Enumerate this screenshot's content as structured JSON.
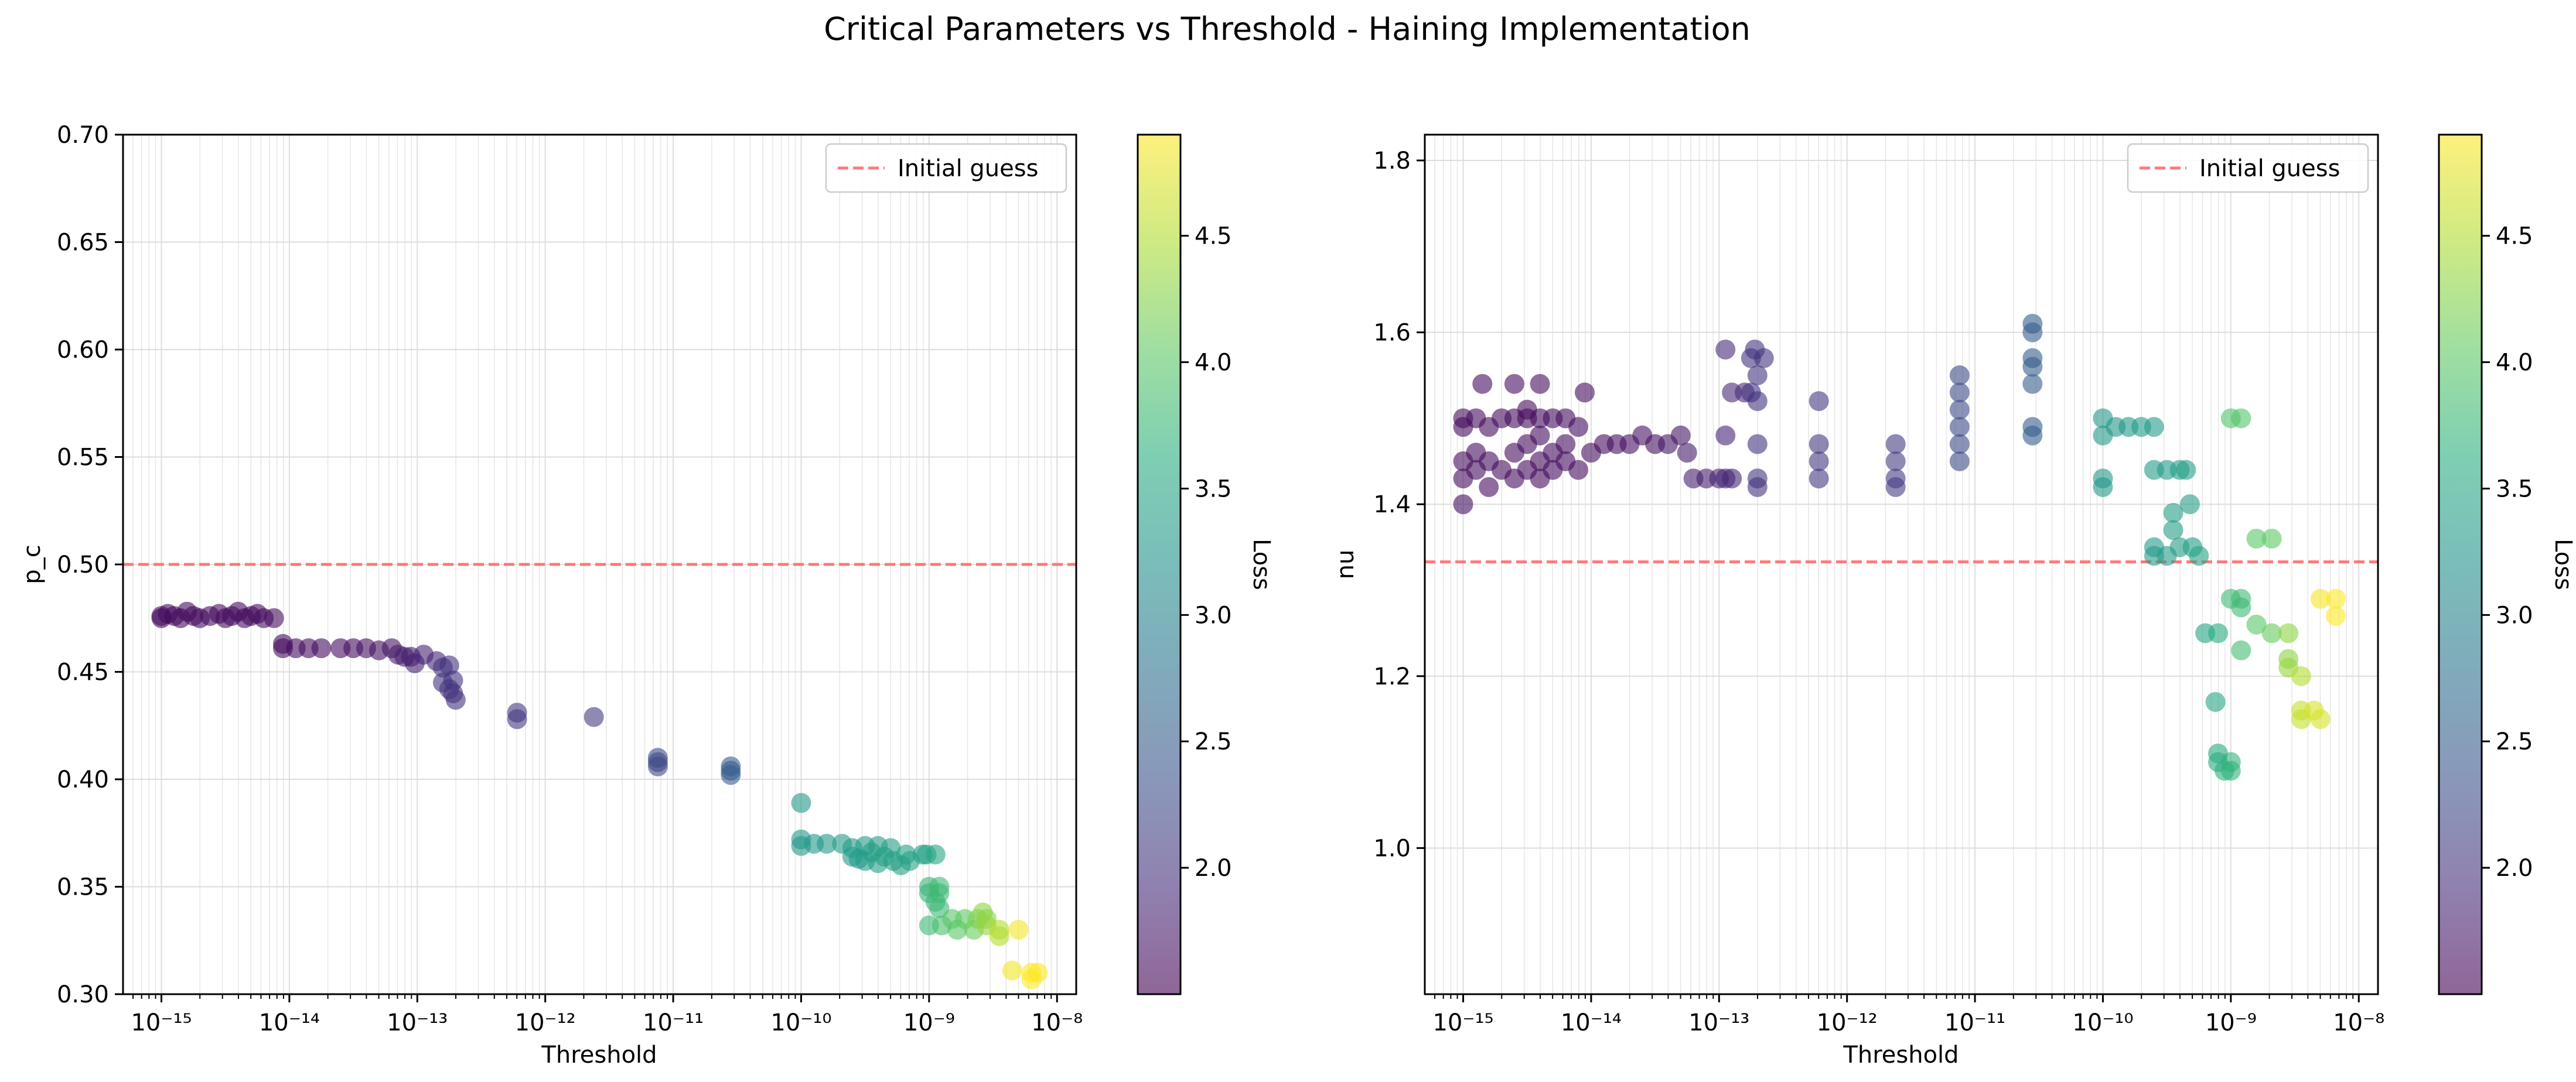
{
  "figure": {
    "suptitle": "Critical Parameters vs Threshold - Haining Implementation"
  },
  "colormap": {
    "name": "viridis",
    "alpha": 0.6,
    "label": "Loss",
    "range": [
      1.5,
      4.9
    ],
    "ticks": [
      2.0,
      2.5,
      3.0,
      3.5,
      4.0,
      4.5
    ],
    "tick_labels": [
      "2.0",
      "2.5",
      "3.0",
      "3.5",
      "4.0",
      "4.5"
    ]
  },
  "reference_line": {
    "color": "#ff6b6b",
    "label": "Initial guess"
  },
  "chart_data": [
    {
      "type": "scatter",
      "xscale": "log",
      "xlabel": "Threshold",
      "ylabel": "p_c",
      "xlim_exp": [
        -15.3,
        -7.85
      ],
      "ylim": [
        0.3,
        0.7
      ],
      "xtick_exps": [
        -15,
        -14,
        -13,
        -12,
        -11,
        -10,
        -9,
        -8
      ],
      "xtick_labels": [
        "10⁻¹⁵",
        "10⁻¹⁴",
        "10⁻¹³",
        "10⁻¹²",
        "10⁻¹¹",
        "10⁻¹⁰",
        "10⁻⁹",
        "10⁻⁸"
      ],
      "yticks": [
        0.3,
        0.35,
        0.4,
        0.45,
        0.5,
        0.55,
        0.6,
        0.65,
        0.7
      ],
      "ytick_labels": [
        "0.30",
        "0.35",
        "0.40",
        "0.45",
        "0.50",
        "0.55",
        "0.60",
        "0.65",
        "0.70"
      ],
      "hline": 0.5,
      "legend": {
        "entries": [
          "Initial guess"
        ],
        "position": "top-right"
      },
      "grid": true,
      "points": [
        [
          -15,
          0.476,
          1.6
        ],
        [
          -15,
          0.475,
          1.6
        ],
        [
          -14.95,
          0.477,
          1.6
        ],
        [
          -14.9,
          0.476,
          1.6
        ],
        [
          -14.85,
          0.475,
          1.6
        ],
        [
          -14.8,
          0.478,
          1.6
        ],
        [
          -14.75,
          0.476,
          1.6
        ],
        [
          -14.7,
          0.475,
          1.6
        ],
        [
          -14.62,
          0.476,
          1.6
        ],
        [
          -14.55,
          0.477,
          1.6
        ],
        [
          -14.5,
          0.475,
          1.6
        ],
        [
          -14.45,
          0.476,
          1.6
        ],
        [
          -14.4,
          0.478,
          1.6
        ],
        [
          -14.35,
          0.475,
          1.6
        ],
        [
          -14.3,
          0.476,
          1.6
        ],
        [
          -14.25,
          0.477,
          1.6
        ],
        [
          -14.2,
          0.475,
          1.6
        ],
        [
          -14.12,
          0.475,
          1.6
        ],
        [
          -14.05,
          0.463,
          1.62
        ],
        [
          -14.05,
          0.461,
          1.62
        ],
        [
          -13.95,
          0.461,
          1.62
        ],
        [
          -13.85,
          0.461,
          1.62
        ],
        [
          -13.75,
          0.461,
          1.62
        ],
        [
          -13.6,
          0.461,
          1.62
        ],
        [
          -13.5,
          0.461,
          1.62
        ],
        [
          -13.4,
          0.461,
          1.65
        ],
        [
          -13.3,
          0.46,
          1.65
        ],
        [
          -13.2,
          0.461,
          1.7
        ],
        [
          -13.15,
          0.458,
          1.75
        ],
        [
          -13.1,
          0.457,
          1.8
        ],
        [
          -13.05,
          0.457,
          1.8
        ],
        [
          -13.02,
          0.454,
          1.8
        ],
        [
          -12.95,
          0.458,
          1.85
        ],
        [
          -12.85,
          0.455,
          1.85
        ],
        [
          -12.8,
          0.452,
          2.0
        ],
        [
          -12.75,
          0.453,
          2.0
        ],
        [
          -12.8,
          0.445,
          2.0
        ],
        [
          -12.75,
          0.442,
          2.0
        ],
        [
          -12.72,
          0.44,
          2.0
        ],
        [
          -12.7,
          0.437,
          2.0
        ],
        [
          -12.72,
          0.446,
          2.0
        ],
        [
          -12.22,
          0.431,
          2.05
        ],
        [
          -12.22,
          0.428,
          2.05
        ],
        [
          -11.62,
          0.429,
          2.1
        ],
        [
          -11.12,
          0.41,
          2.25
        ],
        [
          -11.12,
          0.408,
          2.25
        ],
        [
          -11.12,
          0.406,
          2.25
        ],
        [
          -10.55,
          0.406,
          2.5
        ],
        [
          -10.55,
          0.404,
          2.5
        ],
        [
          -10.55,
          0.402,
          2.5
        ],
        [
          -10.0,
          0.389,
          3.3
        ],
        [
          -10.0,
          0.372,
          3.3
        ],
        [
          -10.0,
          0.369,
          3.3
        ],
        [
          -9.9,
          0.37,
          3.3
        ],
        [
          -9.8,
          0.37,
          3.3
        ],
        [
          -9.68,
          0.37,
          3.35
        ],
        [
          -9.6,
          0.368,
          3.35
        ],
        [
          -9.6,
          0.364,
          3.35
        ],
        [
          -9.55,
          0.363,
          3.35
        ],
        [
          -9.5,
          0.369,
          3.35
        ],
        [
          -9.5,
          0.362,
          3.35
        ],
        [
          -9.45,
          0.366,
          3.4
        ],
        [
          -9.4,
          0.369,
          3.4
        ],
        [
          -9.4,
          0.361,
          3.4
        ],
        [
          -9.35,
          0.364,
          3.4
        ],
        [
          -9.3,
          0.368,
          3.4
        ],
        [
          -9.28,
          0.362,
          3.4
        ],
        [
          -9.22,
          0.36,
          3.4
        ],
        [
          -9.18,
          0.365,
          3.45
        ],
        [
          -9.15,
          0.362,
          3.45
        ],
        [
          -9.05,
          0.365,
          3.45
        ],
        [
          -9.02,
          0.365,
          3.45
        ],
        [
          -8.95,
          0.365,
          3.5
        ],
        [
          -9.0,
          0.35,
          3.75
        ],
        [
          -9.0,
          0.347,
          3.75
        ],
        [
          -9.0,
          0.332,
          3.8
        ],
        [
          -8.95,
          0.343,
          3.75
        ],
        [
          -8.92,
          0.35,
          3.8
        ],
        [
          -8.92,
          0.347,
          3.8
        ],
        [
          -8.92,
          0.34,
          3.8
        ],
        [
          -8.9,
          0.332,
          3.9
        ],
        [
          -8.82,
          0.335,
          4.0
        ],
        [
          -8.78,
          0.33,
          4.0
        ],
        [
          -8.72,
          0.335,
          4.05
        ],
        [
          -8.65,
          0.33,
          4.1
        ],
        [
          -8.62,
          0.335,
          4.2
        ],
        [
          -8.58,
          0.338,
          4.3
        ],
        [
          -8.55,
          0.335,
          4.3
        ],
        [
          -8.55,
          0.332,
          4.35
        ],
        [
          -8.45,
          0.33,
          4.5
        ],
        [
          -8.45,
          0.327,
          4.5
        ],
        [
          -8.3,
          0.33,
          4.85
        ],
        [
          -8.35,
          0.311,
          4.85
        ],
        [
          -8.2,
          0.31,
          4.9
        ],
        [
          -8.15,
          0.31,
          4.9
        ],
        [
          -8.2,
          0.307,
          4.9
        ]
      ]
    },
    {
      "type": "scatter",
      "xscale": "log",
      "xlabel": "Threshold",
      "ylabel": "nu",
      "xlim_exp": [
        -15.3,
        -7.85
      ],
      "ylim": [
        0.83,
        1.83
      ],
      "xtick_exps": [
        -15,
        -14,
        -13,
        -12,
        -11,
        -10,
        -9,
        -8
      ],
      "xtick_labels": [
        "10⁻¹⁵",
        "10⁻¹⁴",
        "10⁻¹³",
        "10⁻¹²",
        "10⁻¹¹",
        "10⁻¹⁰",
        "10⁻⁹",
        "10⁻⁸"
      ],
      "yticks": [
        1.0,
        1.2,
        1.4,
        1.6,
        1.8
      ],
      "ytick_labels": [
        "1.0",
        "1.2",
        "1.4",
        "1.6",
        "1.8"
      ],
      "hline": 1.333,
      "legend": {
        "entries": [
          "Initial guess"
        ],
        "position": "top-right"
      },
      "grid": true,
      "points": [
        [
          -15,
          1.4,
          1.6
        ],
        [
          -15,
          1.43,
          1.6
        ],
        [
          -15,
          1.45,
          1.6
        ],
        [
          -15,
          1.49,
          1.6
        ],
        [
          -15,
          1.5,
          1.6
        ],
        [
          -14.9,
          1.44,
          1.6
        ],
        [
          -14.9,
          1.46,
          1.6
        ],
        [
          -14.9,
          1.5,
          1.6
        ],
        [
          -14.85,
          1.54,
          1.6
        ],
        [
          -14.8,
          1.42,
          1.6
        ],
        [
          -14.8,
          1.45,
          1.6
        ],
        [
          -14.8,
          1.49,
          1.6
        ],
        [
          -14.7,
          1.44,
          1.6
        ],
        [
          -14.7,
          1.5,
          1.6
        ],
        [
          -14.6,
          1.43,
          1.6
        ],
        [
          -14.6,
          1.46,
          1.6
        ],
        [
          -14.6,
          1.5,
          1.6
        ],
        [
          -14.6,
          1.54,
          1.6
        ],
        [
          -14.5,
          1.44,
          1.6
        ],
        [
          -14.5,
          1.47,
          1.6
        ],
        [
          -14.5,
          1.5,
          1.6
        ],
        [
          -14.5,
          1.51,
          1.6
        ],
        [
          -14.4,
          1.43,
          1.6
        ],
        [
          -14.4,
          1.45,
          1.6
        ],
        [
          -14.4,
          1.48,
          1.6
        ],
        [
          -14.4,
          1.5,
          1.6
        ],
        [
          -14.4,
          1.54,
          1.6
        ],
        [
          -14.3,
          1.44,
          1.6
        ],
        [
          -14.3,
          1.46,
          1.6
        ],
        [
          -14.3,
          1.5,
          1.6
        ],
        [
          -14.2,
          1.45,
          1.6
        ],
        [
          -14.2,
          1.47,
          1.6
        ],
        [
          -14.2,
          1.5,
          1.6
        ],
        [
          -14.1,
          1.44,
          1.62
        ],
        [
          -14.1,
          1.49,
          1.62
        ],
        [
          -14.05,
          1.53,
          1.62
        ],
        [
          -14.0,
          1.46,
          1.62
        ],
        [
          -13.9,
          1.47,
          1.62
        ],
        [
          -13.8,
          1.47,
          1.62
        ],
        [
          -13.7,
          1.47,
          1.65
        ],
        [
          -13.6,
          1.48,
          1.65
        ],
        [
          -13.5,
          1.47,
          1.65
        ],
        [
          -13.4,
          1.47,
          1.7
        ],
        [
          -13.3,
          1.48,
          1.7
        ],
        [
          -13.25,
          1.46,
          1.75
        ],
        [
          -13.2,
          1.43,
          1.8
        ],
        [
          -13.1,
          1.43,
          1.8
        ],
        [
          -13.0,
          1.43,
          1.85
        ],
        [
          -12.95,
          1.43,
          1.85
        ],
        [
          -12.9,
          1.43,
          1.85
        ],
        [
          -12.95,
          1.48,
          1.85
        ],
        [
          -12.95,
          1.58,
          1.9
        ],
        [
          -12.9,
          1.53,
          1.9
        ],
        [
          -12.8,
          1.53,
          1.9
        ],
        [
          -12.75,
          1.57,
          2.0
        ],
        [
          -12.72,
          1.58,
          2.0
        ],
        [
          -12.7,
          1.55,
          2.0
        ],
        [
          -12.7,
          1.52,
          2.0
        ],
        [
          -12.75,
          1.53,
          2.0
        ],
        [
          -12.7,
          1.47,
          2.0
        ],
        [
          -12.7,
          1.43,
          2.0
        ],
        [
          -12.7,
          1.42,
          2.0
        ],
        [
          -12.65,
          1.57,
          2.0
        ],
        [
          -12.22,
          1.52,
          2.05
        ],
        [
          -12.22,
          1.47,
          2.05
        ],
        [
          -12.22,
          1.45,
          2.05
        ],
        [
          -12.22,
          1.43,
          2.05
        ],
        [
          -11.62,
          1.47,
          2.1
        ],
        [
          -11.62,
          1.45,
          2.1
        ],
        [
          -11.62,
          1.43,
          2.1
        ],
        [
          -11.62,
          1.42,
          2.1
        ],
        [
          -11.12,
          1.55,
          2.25
        ],
        [
          -11.12,
          1.53,
          2.25
        ],
        [
          -11.12,
          1.51,
          2.25
        ],
        [
          -11.12,
          1.49,
          2.25
        ],
        [
          -11.12,
          1.47,
          2.25
        ],
        [
          -11.12,
          1.45,
          2.25
        ],
        [
          -10.55,
          1.61,
          2.5
        ],
        [
          -10.55,
          1.6,
          2.5
        ],
        [
          -10.55,
          1.57,
          2.5
        ],
        [
          -10.55,
          1.56,
          2.5
        ],
        [
          -10.55,
          1.54,
          2.5
        ],
        [
          -10.55,
          1.49,
          2.5
        ],
        [
          -10.55,
          1.48,
          2.5
        ],
        [
          -10.0,
          1.5,
          3.3
        ],
        [
          -10.0,
          1.48,
          3.3
        ],
        [
          -10.0,
          1.43,
          3.3
        ],
        [
          -10.0,
          1.42,
          3.3
        ],
        [
          -9.9,
          1.49,
          3.3
        ],
        [
          -9.8,
          1.49,
          3.3
        ],
        [
          -9.7,
          1.49,
          3.35
        ],
        [
          -9.6,
          1.49,
          3.35
        ],
        [
          -9.6,
          1.44,
          3.35
        ],
        [
          -9.6,
          1.35,
          3.35
        ],
        [
          -9.6,
          1.34,
          3.35
        ],
        [
          -9.5,
          1.44,
          3.35
        ],
        [
          -9.5,
          1.34,
          3.35
        ],
        [
          -9.45,
          1.39,
          3.4
        ],
        [
          -9.45,
          1.37,
          3.4
        ],
        [
          -9.4,
          1.44,
          3.4
        ],
        [
          -9.4,
          1.35,
          3.4
        ],
        [
          -9.35,
          1.44,
          3.4
        ],
        [
          -9.32,
          1.4,
          3.4
        ],
        [
          -9.3,
          1.35,
          3.4
        ],
        [
          -9.25,
          1.34,
          3.45
        ],
        [
          -9.2,
          1.25,
          3.45
        ],
        [
          -9.12,
          1.17,
          3.5
        ],
        [
          -9.1,
          1.25,
          3.6
        ],
        [
          -9.1,
          1.11,
          3.6
        ],
        [
          -9.1,
          1.1,
          3.6
        ],
        [
          -9.05,
          1.09,
          3.65
        ],
        [
          -9.0,
          1.1,
          3.7
        ],
        [
          -9.0,
          1.09,
          3.7
        ],
        [
          -9.0,
          1.29,
          3.8
        ],
        [
          -9.0,
          1.5,
          3.95
        ],
        [
          -8.92,
          1.5,
          3.95
        ],
        [
          -8.92,
          1.29,
          3.8
        ],
        [
          -8.92,
          1.28,
          3.8
        ],
        [
          -8.92,
          1.23,
          3.85
        ],
        [
          -8.8,
          1.36,
          4.0
        ],
        [
          -8.8,
          1.26,
          4.0
        ],
        [
          -8.68,
          1.36,
          4.05
        ],
        [
          -8.68,
          1.25,
          4.1
        ],
        [
          -8.55,
          1.25,
          4.3
        ],
        [
          -8.55,
          1.22,
          4.3
        ],
        [
          -8.55,
          1.21,
          4.35
        ],
        [
          -8.45,
          1.2,
          4.5
        ],
        [
          -8.45,
          1.16,
          4.6
        ],
        [
          -8.45,
          1.15,
          4.6
        ],
        [
          -8.35,
          1.16,
          4.7
        ],
        [
          -8.3,
          1.15,
          4.7
        ],
        [
          -8.3,
          1.29,
          4.85
        ],
        [
          -8.18,
          1.29,
          4.9
        ],
        [
          -8.18,
          1.27,
          4.9
        ]
      ]
    }
  ]
}
